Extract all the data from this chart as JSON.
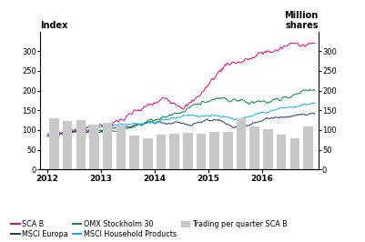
{
  "title_left": "Index",
  "title_right": "Million\nshares",
  "ylim_left": [
    0,
    350
  ],
  "ylim_right": [
    0,
    350
  ],
  "yticks_left": [
    0,
    50,
    100,
    150,
    200,
    250,
    300
  ],
  "yticks_right": [
    0,
    50,
    100,
    150,
    200,
    250,
    300
  ],
  "xtick_labels": [
    "2012",
    "2013",
    "2014",
    "2015",
    "2016"
  ],
  "colors": {
    "sca_b": "#e6007e",
    "msci_europa": "#1f3864",
    "omx30": "#00843d",
    "msci_household": "#00b0f0",
    "bars": "#c8c8c8"
  },
  "bar_vals": [
    130,
    122,
    125,
    113,
    118,
    112,
    85,
    80,
    88,
    90,
    93,
    90,
    95,
    95,
    130,
    108,
    102,
    88,
    80,
    110
  ],
  "legend_row1": [
    "SCA B",
    "#e6007e",
    "MSCI Europa",
    "#1f3864",
    "OMX Stockholm 30",
    "#00843d"
  ],
  "legend_row2_line": [
    "MSCI Household Products",
    "#00b0f0"
  ],
  "legend_row2_bar": [
    "Trading per quarter SCA B",
    "#c8c8c8"
  ]
}
